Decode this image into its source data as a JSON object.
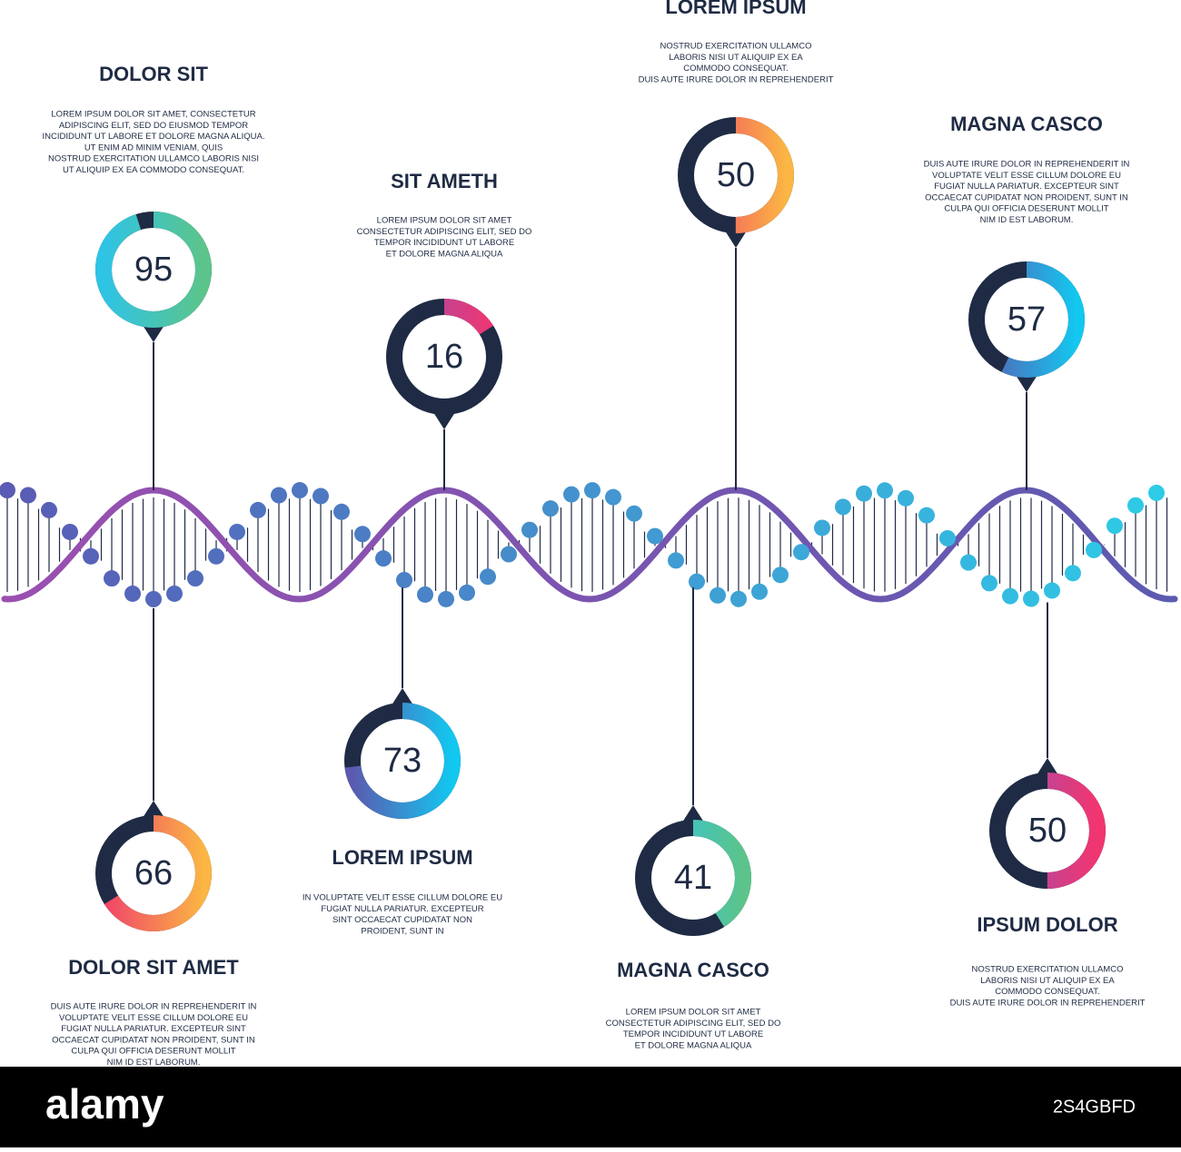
{
  "items": [
    {
      "title": "DOLOR SIT",
      "value": 95,
      "colors": [
        "#2ec4e6",
        "#5cc48a"
      ],
      "lines": [
        "LOREM IPSUM DOLOR SIT AMET, CONSECTETUR",
        "ADIPISCING ELIT, SED DO EIUSMOD TEMPOR",
        "INCIDIDUNT UT LABORE ET DOLORE MAGNA ALIQUA.",
        "UT ENIM AD MINIM VENIAM, QUIS",
        "NOSTRUD EXERCITATION ULLAMCO LABORIS NISI",
        "UT ALIQUIP EX EA COMMODO CONSEQUAT."
      ]
    },
    {
      "title": "SIT AMETH",
      "value": 16,
      "colors": [
        "#9b4fb0",
        "#f2356f"
      ],
      "lines": [
        "LOREM IPSUM DOLOR SIT AMET",
        "CONSECTETUR ADIPISCING ELIT, SED DO",
        "TEMPOR INCIDIDUNT UT LABORE",
        "ET DOLORE MAGNA ALIQUA"
      ]
    },
    {
      "title": "LOREM IPSUM",
      "value": 50,
      "colors": [
        "#f0436a",
        "#fbb643"
      ],
      "lines": [
        "NOSTRUD EXERCITATION ULLAMCO",
        "LABORIS NISI UT ALIQUIP EX EA",
        "COMMODO CONSEQUAT.",
        "DUIS AUTE IRURE DOLOR IN REPREHENDERIT"
      ]
    },
    {
      "title": "MAGNA CASCO",
      "value": 57,
      "colors": [
        "#5b5ab0",
        "#12c8f0"
      ],
      "lines": [
        "DUIS AUTE IRURE DOLOR IN REPREHENDERIT IN",
        "VOLUPTATE VELIT ESSE CILLUM DOLORE EU",
        "FUGIAT NULLA PARIATUR. EXCEPTEUR SINT",
        "OCCAECAT CUPIDATAT NON PROIDENT, SUNT IN",
        "CULPA QUI OFFICIA DESERUNT MOLLIT",
        "NIM ID EST LABORUM."
      ]
    },
    {
      "title": "DOLOR SIT AMET",
      "value": 66,
      "colors": [
        "#f0436a",
        "#fbb643"
      ],
      "lines": [
        "DUIS AUTE IRURE DOLOR IN REPREHENDERIT IN",
        "VOLUPTATE VELIT ESSE CILLUM DOLORE EU",
        "FUGIAT NULLA PARIATUR. EXCEPTEUR SINT",
        "OCCAECAT CUPIDATAT NON PROIDENT, SUNT IN",
        "CULPA QUI OFFICIA DESERUNT MOLLIT",
        "NIM ID EST LABORUM."
      ]
    },
    {
      "title": "LOREM IPSUM",
      "value": 73,
      "colors": [
        "#5b5ab0",
        "#12c8f0"
      ],
      "lines": [
        "IN VOLUPTATE VELIT ESSE CILLUM DOLORE EU",
        "FUGIAT NULLA PARIATUR. EXCEPTEUR",
        "SINT OCCAECAT CUPIDATAT NON",
        "PROIDENT, SUNT IN"
      ]
    },
    {
      "title": "MAGNA CASCO",
      "value": 41,
      "colors": [
        "#2ec4e6",
        "#5cc48a"
      ],
      "lines": [
        "LOREM IPSUM DOLOR SIT AMET",
        "CONSECTETUR ADIPISCING ELIT, SED DO",
        "TEMPOR INCIDIDUNT UT LABORE",
        "ET DOLORE MAGNA ALIQUA"
      ]
    },
    {
      "title": "IPSUM DOLOR",
      "value": 50,
      "colors": [
        "#9b4fb0",
        "#f2356f"
      ],
      "lines": [
        "NOSTRUD EXERCITATION ULLAMCO",
        "LABORIS NISI UT ALIQUIP EX EA",
        "COMMODO CONSEQUAT.",
        "DUIS AUTE IRURE DOLOR IN REPREHENDERIT"
      ]
    }
  ],
  "footer": {
    "brand": "alamy",
    "image_id": "2S4GBFD"
  }
}
